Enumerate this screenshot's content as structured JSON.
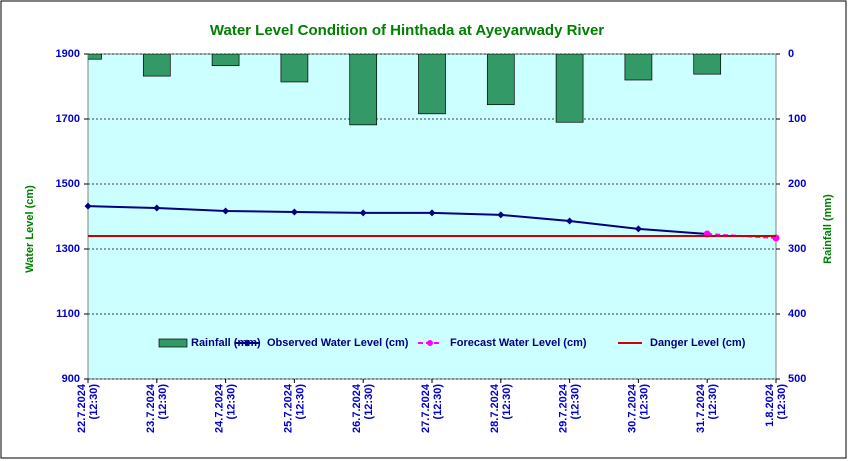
{
  "chart_data": {
    "type": "bar_line",
    "title": "Water Level Condition of Hinthada at Ayeyarwady River",
    "ylabel": "Water Level (cm)",
    "y2label": "Rainfall (mm)",
    "categories": [
      "22.7.2024\n(12:30)",
      "23.7.2024\n(12:30)",
      "24.7.2024\n(12:30)",
      "25.7.2024\n(12:30)",
      "26.7.2024\n(12:30)",
      "27.7.2024\n(12:30)",
      "28.7.2024\n(12:30)",
      "29.7.2024\n(12:30)",
      "30.7.2024\n(12:30)",
      "31.7.2024\n(12:30)",
      "1.8.2024\n(12:30)"
    ],
    "ylim": [
      900,
      1900
    ],
    "yticks": [
      900,
      1100,
      1300,
      1500,
      1700,
      1900
    ],
    "y2lim": [
      500,
      0
    ],
    "y2ticks": [
      0,
      100,
      200,
      300,
      400,
      500
    ],
    "grid": true,
    "series": [
      {
        "name": "Rainfall (mm)",
        "type": "bar",
        "axis": "y2",
        "color": "#339966",
        "values": [
          8,
          34,
          18,
          43,
          109,
          92,
          78,
          105,
          40,
          31,
          null
        ]
      },
      {
        "name": "Observed Water Level (cm)",
        "type": "line",
        "color": "#000080",
        "marker": "diamond",
        "dashed": false,
        "values": [
          1432,
          1426,
          1417,
          1414,
          1411,
          1411,
          1405,
          1386,
          1362,
          1346,
          null
        ]
      },
      {
        "name": "Forecast Water Level (cm)",
        "type": "line",
        "color": "#ff00ff",
        "marker": "circle",
        "dashed": true,
        "values": [
          null,
          null,
          null,
          null,
          null,
          null,
          null,
          null,
          null,
          1346,
          1334
        ]
      },
      {
        "name": "Danger Level (cm)",
        "type": "line",
        "color": "#cc0000",
        "marker": "none",
        "dashed": false,
        "values": [
          1340,
          1340,
          1340,
          1340,
          1340,
          1340,
          1340,
          1340,
          1340,
          1340,
          1340
        ]
      }
    ]
  }
}
